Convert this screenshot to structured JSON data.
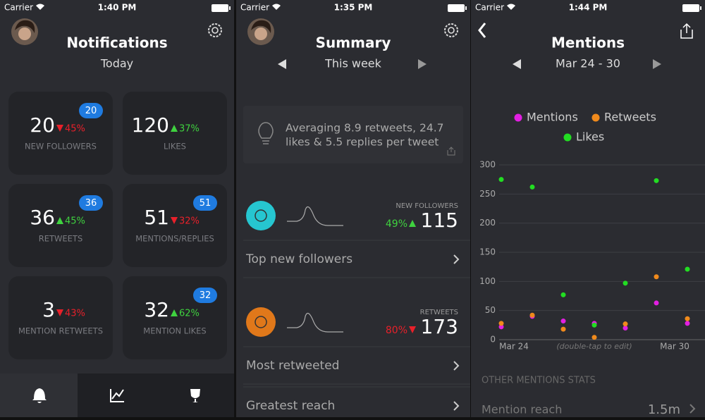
{
  "screens": [
    {
      "carrier": "Carrier",
      "time": "1:40 PM",
      "title": "Notifications",
      "subtitle": "Today",
      "cards": [
        {
          "value": "20",
          "change": "45%",
          "direction": "down",
          "label": "NEW FOLLOWERS",
          "badge": "20"
        },
        {
          "value": "120",
          "change": "37%",
          "direction": "up",
          "label": "LIKES"
        },
        {
          "value": "36",
          "change": "45%",
          "direction": "up",
          "label": "RETWEETS",
          "badge": "36"
        },
        {
          "value": "51",
          "change": "32%",
          "direction": "down",
          "label": "MENTIONS/REPLIES",
          "badge": "51"
        },
        {
          "value": "3",
          "change": "43%",
          "direction": "down",
          "label": "MENTION RETWEETS"
        },
        {
          "value": "32",
          "change": "62%",
          "direction": "up",
          "label": "MENTION LIKES",
          "badge": "32"
        }
      ]
    },
    {
      "carrier": "Carrier",
      "time": "1:35 PM",
      "title": "Summary",
      "subtitle": "This week",
      "tip": [
        "Averaging 8.9 retweets, 24.7",
        "likes & 5.5 replies per tweet"
      ],
      "stats": [
        {
          "label": "NEW FOLLOWERS",
          "change": "49%",
          "direction": "up",
          "value": "115",
          "link": "Top new followers",
          "color": "#26c6d0"
        },
        {
          "label": "RETWEETS",
          "change": "80%",
          "direction": "down",
          "value": "173",
          "link": "Most retweeted",
          "color": "#e0781a"
        }
      ],
      "extra_link": "Greatest reach"
    },
    {
      "carrier": "Carrier",
      "time": "1:44 PM",
      "title": "Mentions",
      "subtitle": "Mar 24 - 30",
      "section": "OTHER MENTIONS STATS",
      "row": {
        "label": "Mention reach",
        "value": "1.5m"
      }
    }
  ],
  "chart_data": {
    "type": "line",
    "categories": [
      "Mar 24",
      null,
      null,
      null,
      null,
      null,
      "Mar 30"
    ],
    "note": "(double-tap to edit)",
    "series": [
      {
        "name": "Mentions",
        "color": "#e21fe2",
        "values": [
          22,
          40,
          32,
          28,
          20,
          63,
          28
        ]
      },
      {
        "name": "Retweets",
        "color": "#f08a1c",
        "values": [
          28,
          42,
          18,
          4,
          27,
          108,
          36
        ]
      },
      {
        "name": "Likes",
        "color": "#22dd22",
        "values": [
          275,
          262,
          77,
          25,
          97,
          273,
          121
        ]
      }
    ],
    "ylim": [
      0,
      300
    ],
    "yticks": [
      0,
      50,
      100,
      150,
      200,
      250,
      300
    ],
    "grid": true
  }
}
